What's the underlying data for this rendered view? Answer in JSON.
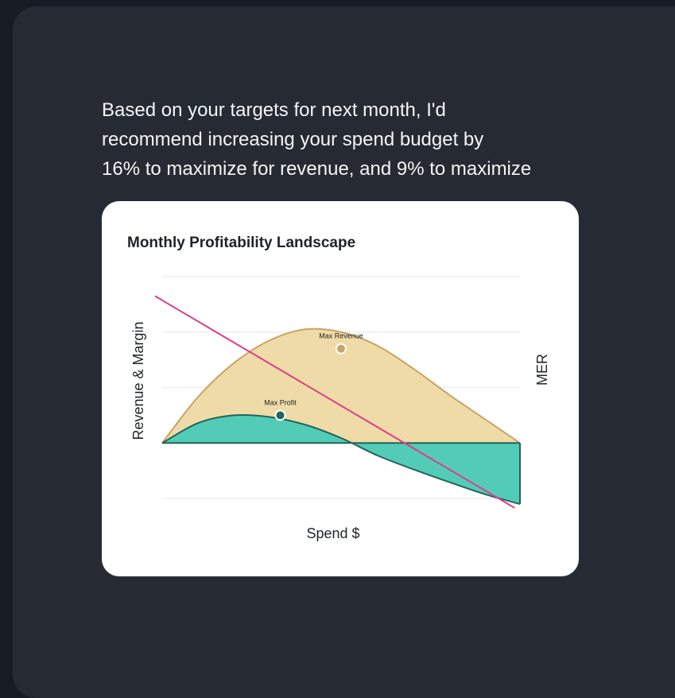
{
  "message": {
    "lines": [
      "Based on your targets for next month, I'd",
      "recommend increasing your spend budget by",
      "16% to maximize for revenue, and 9% to maximize"
    ]
  },
  "chart_data": {
    "type": "area",
    "title": "Monthly Profitability Landscape",
    "xlabel": "Spend $",
    "ylabel": "Revenue & Margin",
    "y2label": "MER",
    "grid": true,
    "legend": "none",
    "xlim": [
      0,
      100
    ],
    "ylim": [
      -1.1,
      3
    ],
    "series": [
      {
        "type": "area",
        "color": "#efdba7",
        "stroke": "#c9a364",
        "x": [
          0,
          10,
          20,
          30,
          40,
          50,
          60,
          70,
          80,
          90,
          100
        ],
        "values": [
          0,
          0.83,
          1.44,
          1.85,
          2.05,
          2.0,
          1.76,
          1.35,
          0.88,
          0.44,
          0
        ]
      },
      {
        "type": "area",
        "color": "#52ccb7",
        "stroke": "#25645a",
        "x": [
          0,
          10,
          20,
          30,
          40,
          50,
          60,
          70,
          80,
          90,
          100
        ],
        "values": [
          0,
          0.36,
          0.5,
          0.47,
          0.33,
          0.09,
          -0.22,
          -0.47,
          -0.7,
          -0.92,
          -1.1
        ]
      },
      {
        "type": "line",
        "color": "#dd3f8a",
        "x": [
          -2,
          98.5
        ],
        "values": [
          2.65,
          -1.17
        ]
      }
    ],
    "annotations": [
      {
        "label": "Max Revenue",
        "x": 50,
        "y": 1.7,
        "color": "#caa26c"
      },
      {
        "label": "Max Profit",
        "x": 33,
        "y": 0.5,
        "color": "#25645a"
      }
    ],
    "colors": {
      "gridline": "#ececec",
      "text": "#1f2328"
    }
  }
}
